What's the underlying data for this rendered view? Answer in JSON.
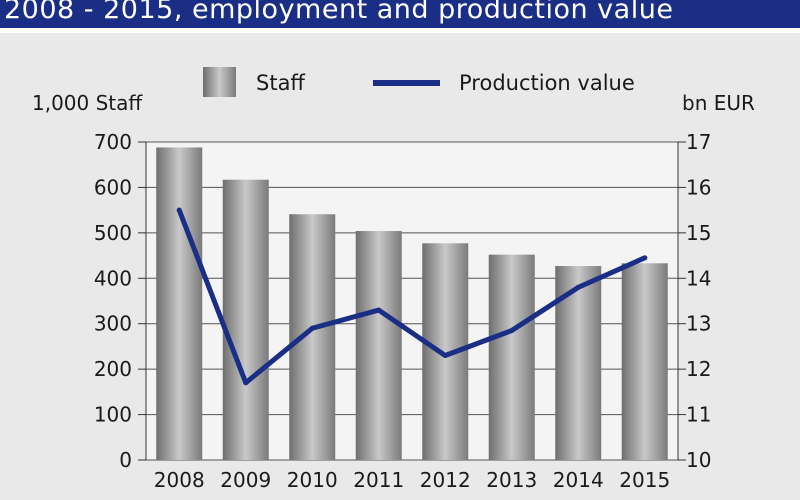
{
  "title": "2008 - 2015, employment and production value",
  "chart_data": {
    "type": "bar",
    "categories": [
      "2008",
      "2009",
      "2010",
      "2011",
      "2012",
      "2013",
      "2014",
      "2015"
    ],
    "series": [
      {
        "name": "Staff",
        "type": "bar",
        "axis": "left",
        "values": [
          688,
          617,
          541,
          504,
          477,
          452,
          427,
          433
        ],
        "color": "#a6a6a6"
      },
      {
        "name": "Production value",
        "type": "line",
        "axis": "right",
        "values": [
          15.5,
          11.7,
          12.9,
          13.3,
          12.3,
          12.85,
          13.8,
          14.45
        ],
        "color": "#1a2e86"
      }
    ],
    "y_left": {
      "label": "1,000 Staff",
      "ylim": [
        0,
        700
      ],
      "ticks": [
        0,
        100,
        200,
        300,
        400,
        500,
        600,
        700
      ]
    },
    "y_right": {
      "label": "bn EUR",
      "ylim": [
        10,
        17
      ],
      "ticks": [
        10,
        11,
        12,
        13,
        14,
        15,
        16,
        17
      ]
    },
    "grid": true,
    "legend": "top"
  }
}
